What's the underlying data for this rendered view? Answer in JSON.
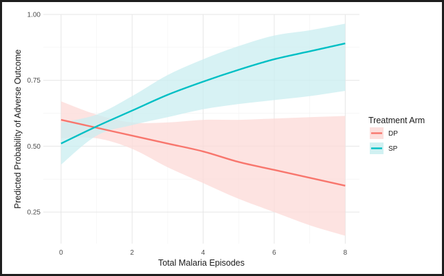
{
  "chart_data": {
    "type": "line",
    "xlabel": "Total Malaria Episodes",
    "ylabel": "Predicted Probability of Adverse Outcome",
    "xlim": [
      -0.5,
      8.4
    ],
    "ylim": [
      0.13,
      1.0
    ],
    "x_ticks": [
      0,
      2,
      4,
      6,
      8
    ],
    "x_tick_labels": [
      "0",
      "2",
      "4",
      "6",
      "8"
    ],
    "y_ticks": [
      0.25,
      0.5,
      0.75,
      1.0
    ],
    "y_tick_labels": [
      "0.25",
      "0.50",
      "0.75",
      "1.00"
    ],
    "grid": true,
    "legend": {
      "title": "Treatment Arm",
      "placement": "right",
      "entries": [
        "DP",
        "SP"
      ]
    },
    "series": [
      {
        "name": "DP",
        "color": "#f8766d",
        "band_color": "#fcd9d7",
        "x": [
          0,
          1,
          2,
          3,
          4,
          5,
          6,
          7,
          8
        ],
        "y": [
          0.6,
          0.57,
          0.54,
          0.51,
          0.48,
          0.44,
          0.41,
          0.38,
          0.35
        ],
        "lower": [
          0.53,
          0.53,
          0.49,
          0.42,
          0.36,
          0.3,
          0.25,
          0.2,
          0.16
        ],
        "upper": [
          0.67,
          0.62,
          0.59,
          0.59,
          0.6,
          0.6,
          0.605,
          0.61,
          0.615
        ]
      },
      {
        "name": "SP",
        "color": "#00bfc4",
        "band_color": "#c9eef0",
        "x": [
          0,
          1,
          2,
          3,
          4,
          5,
          6,
          7,
          8
        ],
        "y": [
          0.51,
          0.575,
          0.635,
          0.695,
          0.745,
          0.79,
          0.83,
          0.86,
          0.89
        ],
        "lower": [
          0.43,
          0.54,
          0.58,
          0.61,
          0.64,
          0.66,
          0.675,
          0.69,
          0.71
        ],
        "upper": [
          0.59,
          0.62,
          0.69,
          0.77,
          0.83,
          0.88,
          0.92,
          0.94,
          0.965
        ]
      }
    ]
  }
}
